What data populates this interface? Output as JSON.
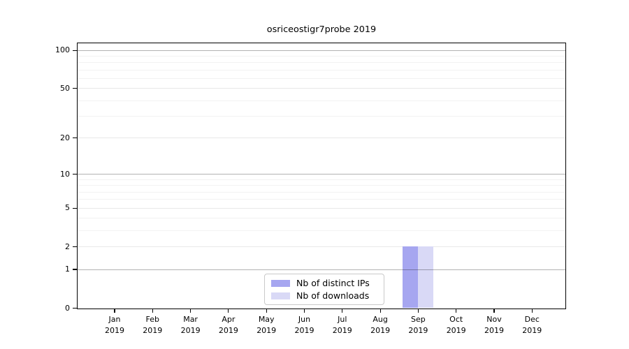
{
  "title": "osriceostigr7probe 2019",
  "chart_data": {
    "type": "bar",
    "title": "osriceostigr7probe 2019",
    "month_labels": [
      "Jan",
      "Feb",
      "Mar",
      "Apr",
      "May",
      "Jun",
      "Jul",
      "Aug",
      "Sep",
      "Oct",
      "Nov",
      "Dec"
    ],
    "year_label": "2019",
    "categories": [
      "Jan 2019",
      "Feb 2019",
      "Mar 2019",
      "Apr 2019",
      "May 2019",
      "Jun 2019",
      "Jul 2019",
      "Aug 2019",
      "Sep 2019",
      "Oct 2019",
      "Nov 2019",
      "Dec 2019"
    ],
    "series": [
      {
        "name": "Nb of distinct IPs",
        "color": "#a6a6f0",
        "values": [
          0,
          0,
          0,
          0,
          0,
          0,
          0,
          0,
          2,
          0,
          0,
          0
        ]
      },
      {
        "name": "Nb of downloads",
        "color": "#d9d9f6",
        "values": [
          0,
          0,
          0,
          0,
          0,
          0,
          0,
          0,
          2,
          0,
          0,
          0
        ]
      }
    ],
    "yscale": "log1p",
    "ylim": [
      0,
      113
    ],
    "y_major_ticks": [
      0,
      1,
      2,
      5,
      10,
      20,
      50,
      100
    ],
    "y_minor_ticks": [
      3,
      4,
      6,
      7,
      8,
      9,
      30,
      40,
      60,
      70,
      80,
      90
    ],
    "grid": true,
    "legend_position": "lower center"
  },
  "colors": {
    "bar_distinct_ips": "#a6a6f0",
    "bar_downloads": "#d9d9f6",
    "grid_minor": "#f2f2f2",
    "grid_major_light": "#e8e8e8",
    "grid_decade": "rgba(0,0,0,0.30)",
    "spine": "#000000",
    "legend_border": "#c9c9c9"
  }
}
